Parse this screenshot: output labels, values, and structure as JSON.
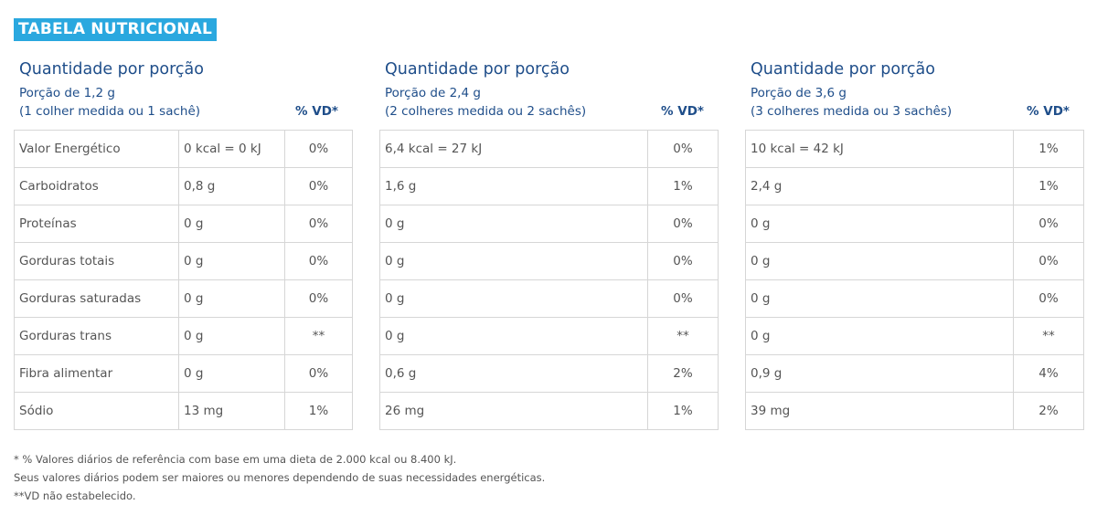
{
  "title": "TABELA NUTRICIONAL",
  "panels": [
    {
      "heading": "Quantidade por porção",
      "portion": "Porção de 1,2 g",
      "portion_desc": "(1 colher medida ou 1 sachê)",
      "vd_header": "% VD*",
      "rows": [
        {
          "amount": "0 kcal = 0 kJ",
          "vd": "0%"
        },
        {
          "amount": "0,8 g",
          "vd": "0%"
        },
        {
          "amount": "0 g",
          "vd": "0%"
        },
        {
          "amount": "0 g",
          "vd": "0%"
        },
        {
          "amount": "0 g",
          "vd": "0%"
        },
        {
          "amount": "0 g",
          "vd": "**"
        },
        {
          "amount": "0 g",
          "vd": "0%"
        },
        {
          "amount": "13 mg",
          "vd": "1%"
        }
      ]
    },
    {
      "heading": "Quantidade por porção",
      "portion": "Porção de 2,4 g",
      "portion_desc": "(2 colheres medida ou 2 sachês)",
      "vd_header": "% VD*",
      "rows": [
        {
          "amount": "6,4 kcal = 27 kJ",
          "vd": "0%"
        },
        {
          "amount": "1,6 g",
          "vd": "1%"
        },
        {
          "amount": "0 g",
          "vd": "0%"
        },
        {
          "amount": "0 g",
          "vd": "0%"
        },
        {
          "amount": "0 g",
          "vd": "0%"
        },
        {
          "amount": "0 g",
          "vd": "**"
        },
        {
          "amount": "0,6 g",
          "vd": "2%"
        },
        {
          "amount": "26 mg",
          "vd": "1%"
        }
      ]
    },
    {
      "heading": "Quantidade por porção",
      "portion": "Porção de 3,6 g",
      "portion_desc": "(3 colheres medida ou 3 sachês)",
      "vd_header": "% VD*",
      "rows": [
        {
          "amount": "10 kcal = 42 kJ",
          "vd": "1%"
        },
        {
          "amount": "2,4 g",
          "vd": "1%"
        },
        {
          "amount": "0 g",
          "vd": "0%"
        },
        {
          "amount": "0 g",
          "vd": "0%"
        },
        {
          "amount": "0 g",
          "vd": "0%"
        },
        {
          "amount": "0 g",
          "vd": "**"
        },
        {
          "amount": "0,9 g",
          "vd": "4%"
        },
        {
          "amount": "39 mg",
          "vd": "2%"
        }
      ]
    }
  ],
  "nutrients": [
    "Valor Energético",
    "Carboidratos",
    "Proteínas",
    "Gorduras totais",
    "Gorduras saturadas",
    "Gorduras trans",
    "Fibra alimentar",
    "Sódio"
  ],
  "footnotes": [
    "* % Valores diários de referência com base em uma dieta de 2.000 kcal ou 8.400 kJ.",
    "Seus valores diários podem ser maiores ou menores dependendo de suas necessidades energéticas.",
    "**VD não estabelecido."
  ],
  "colors": {
    "accent": "#2aa8df",
    "heading_text": "#1f4e8a",
    "body_text": "#555555",
    "border": "#d6d6d6"
  }
}
